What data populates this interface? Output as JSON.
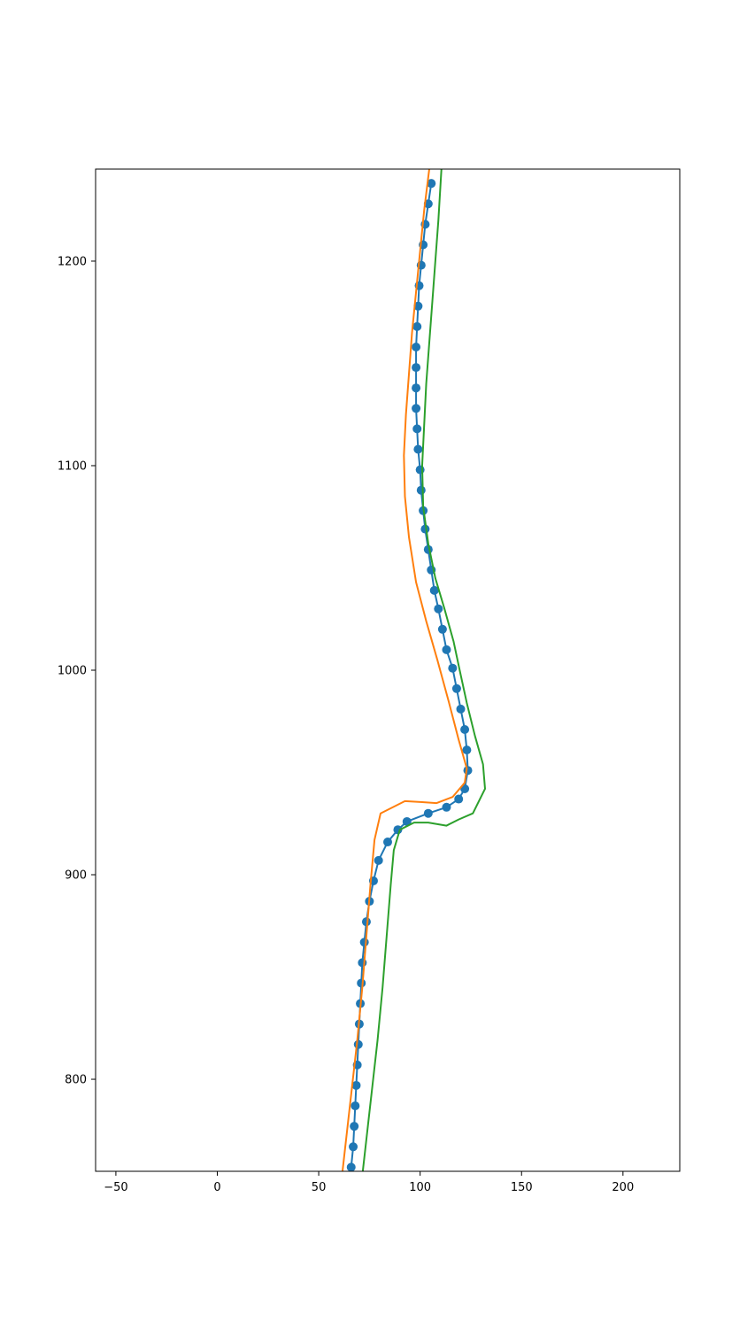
{
  "chart_data": {
    "type": "line",
    "title": "",
    "xlabel": "",
    "ylabel": "",
    "xlim": [
      -60,
      228
    ],
    "ylim": [
      755,
      1245
    ],
    "xticks": [
      -50,
      0,
      50,
      100,
      150,
      200
    ],
    "yticks": [
      800,
      900,
      1000,
      1100,
      1200
    ],
    "xtick_labels": [
      "−50",
      "0",
      "50",
      "100",
      "150",
      "200"
    ],
    "ytick_labels": [
      "800",
      "900",
      "1000",
      "1100",
      "1200"
    ],
    "grid": false,
    "legend": "none",
    "series": [
      {
        "color": "#1f77b4",
        "marker": "circle",
        "points": [
          [
            66,
            757
          ],
          [
            67,
            767
          ],
          [
            67.5,
            777
          ],
          [
            68,
            787
          ],
          [
            68.5,
            797
          ],
          [
            69,
            807
          ],
          [
            69.5,
            817
          ],
          [
            70,
            827
          ],
          [
            70.5,
            837
          ],
          [
            71,
            847
          ],
          [
            71.5,
            857
          ],
          [
            72.5,
            867
          ],
          [
            73.5,
            877
          ],
          [
            75,
            887
          ],
          [
            77,
            897
          ],
          [
            79.5,
            907
          ],
          [
            84,
            916
          ],
          [
            89,
            922
          ],
          [
            93.5,
            926
          ],
          [
            104,
            930
          ],
          [
            113,
            933
          ],
          [
            119,
            937
          ],
          [
            122,
            942
          ],
          [
            123.5,
            951
          ],
          [
            123,
            961
          ],
          [
            122,
            971
          ],
          [
            120,
            981
          ],
          [
            118,
            991
          ],
          [
            116,
            1001
          ],
          [
            113,
            1010
          ],
          [
            111,
            1020
          ],
          [
            109,
            1030
          ],
          [
            107,
            1039
          ],
          [
            105.5,
            1049
          ],
          [
            104,
            1059
          ],
          [
            102.5,
            1069
          ],
          [
            101.5,
            1078
          ],
          [
            100.5,
            1088
          ],
          [
            100,
            1098
          ],
          [
            99,
            1108
          ],
          [
            98.5,
            1118
          ],
          [
            98,
            1128
          ],
          [
            98,
            1138
          ],
          [
            98,
            1148
          ],
          [
            98,
            1158
          ],
          [
            98.5,
            1168
          ],
          [
            99,
            1178
          ],
          [
            99.5,
            1188
          ],
          [
            100.5,
            1198
          ],
          [
            101.5,
            1208
          ],
          [
            102.5,
            1218
          ],
          [
            104,
            1228
          ],
          [
            105.5,
            1238
          ]
        ]
      },
      {
        "color": "#ff7f0e",
        "marker": "none",
        "points": [
          [
            61.5,
            753
          ],
          [
            64,
            775
          ],
          [
            66.5,
            797
          ],
          [
            69,
            819
          ],
          [
            71.5,
            845
          ],
          [
            73.5,
            870
          ],
          [
            75.5,
            895
          ],
          [
            77.5,
            917
          ],
          [
            80.5,
            930
          ],
          [
            92.5,
            936
          ],
          [
            101,
            935.5
          ],
          [
            108,
            935
          ],
          [
            116,
            938
          ],
          [
            122,
            945
          ],
          [
            123,
            952
          ],
          [
            119,
            966
          ],
          [
            114,
            985
          ],
          [
            108.5,
            1005
          ],
          [
            103,
            1024
          ],
          [
            98,
            1043
          ],
          [
            94.5,
            1065
          ],
          [
            92.5,
            1085
          ],
          [
            92,
            1105
          ],
          [
            93,
            1125
          ],
          [
            94.5,
            1145
          ],
          [
            96,
            1165
          ],
          [
            98,
            1185
          ],
          [
            100,
            1205
          ],
          [
            102,
            1225
          ],
          [
            104.5,
            1245
          ]
        ]
      },
      {
        "color": "#2ca02c",
        "marker": "none",
        "points": [
          [
            71.5,
            753
          ],
          [
            74,
            775
          ],
          [
            76.5,
            797
          ],
          [
            79,
            819
          ],
          [
            81.5,
            845
          ],
          [
            83.5,
            870
          ],
          [
            85.5,
            895
          ],
          [
            87,
            912
          ],
          [
            90,
            922
          ],
          [
            97,
            925.5
          ],
          [
            104,
            925.5
          ],
          [
            113,
            924
          ],
          [
            119,
            927
          ],
          [
            126,
            930
          ],
          [
            132,
            942
          ],
          [
            131,
            954
          ],
          [
            127,
            968
          ],
          [
            123,
            984
          ],
          [
            119.5,
            1000
          ],
          [
            116.5,
            1014
          ],
          [
            112,
            1030
          ],
          [
            107.5,
            1045
          ],
          [
            104,
            1062
          ],
          [
            101.5,
            1080
          ],
          [
            101,
            1100
          ],
          [
            102,
            1120
          ],
          [
            103,
            1140
          ],
          [
            104.5,
            1160
          ],
          [
            106,
            1180
          ],
          [
            107.5,
            1200
          ],
          [
            109,
            1220
          ],
          [
            110.5,
            1245
          ]
        ]
      }
    ]
  }
}
